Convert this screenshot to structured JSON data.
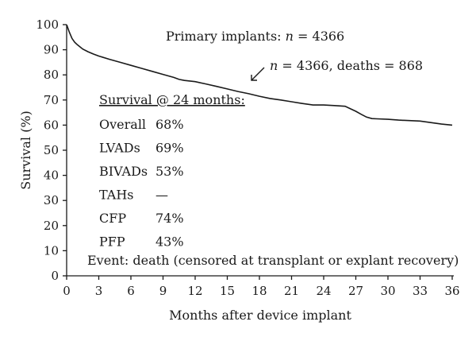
{
  "chart_data": {
    "type": "line",
    "xlabel": "Months after device implant",
    "ylabel": "Survival (%)",
    "xlim": [
      0,
      36
    ],
    "ylim": [
      0,
      100
    ],
    "xticks": [
      0,
      3,
      6,
      9,
      12,
      15,
      18,
      21,
      24,
      27,
      30,
      33,
      36
    ],
    "yticks": [
      0,
      10,
      20,
      30,
      40,
      50,
      60,
      70,
      80,
      90,
      100
    ],
    "grid": false,
    "series": [
      {
        "x": [
          0,
          0.25,
          0.5,
          0.75,
          1,
          1.5,
          2,
          2.5,
          3,
          4,
          5,
          6,
          7,
          8,
          9,
          10,
          10.5,
          11,
          12,
          13,
          14,
          15,
          16,
          17,
          18,
          19,
          20,
          21,
          22,
          23,
          24,
          25,
          26,
          26.5,
          27,
          27.5,
          28,
          28.5,
          29,
          30,
          31,
          32,
          33,
          34,
          35,
          36
        ],
        "y": [
          100,
          97,
          94.5,
          93,
          92,
          90.3,
          89.2,
          88.3,
          87.5,
          86.2,
          85,
          83.8,
          82.6,
          81.4,
          80.2,
          79,
          78.2,
          77.8,
          77.3,
          76.4,
          75.4,
          74.4,
          73.4,
          72.5,
          71.5,
          70.6,
          70,
          69.3,
          68.6,
          68,
          68,
          67.8,
          67.5,
          66.5,
          65.5,
          64.3,
          63.2,
          62.6,
          62.5,
          62.3,
          62,
          61.8,
          61.6,
          61,
          60.4,
          60
        ]
      }
    ],
    "annotations": {
      "cohort": "Primary implants: n = 4366",
      "arrow_label": "n = 4366, deaths = 868",
      "survival_heading": "Survival @ 24 months:",
      "survival_table": [
        {
          "group": "Overall",
          "value": "68%"
        },
        {
          "group": "LVADs",
          "value": "69%"
        },
        {
          "group": "BIVADs",
          "value": "53%"
        },
        {
          "group": "TAHs",
          "value": "—"
        },
        {
          "group": "CFP",
          "value": "74%"
        },
        {
          "group": "PFP",
          "value": "43%"
        }
      ],
      "event_note": "Event: death (censored at transplant or explant recovery)"
    }
  }
}
